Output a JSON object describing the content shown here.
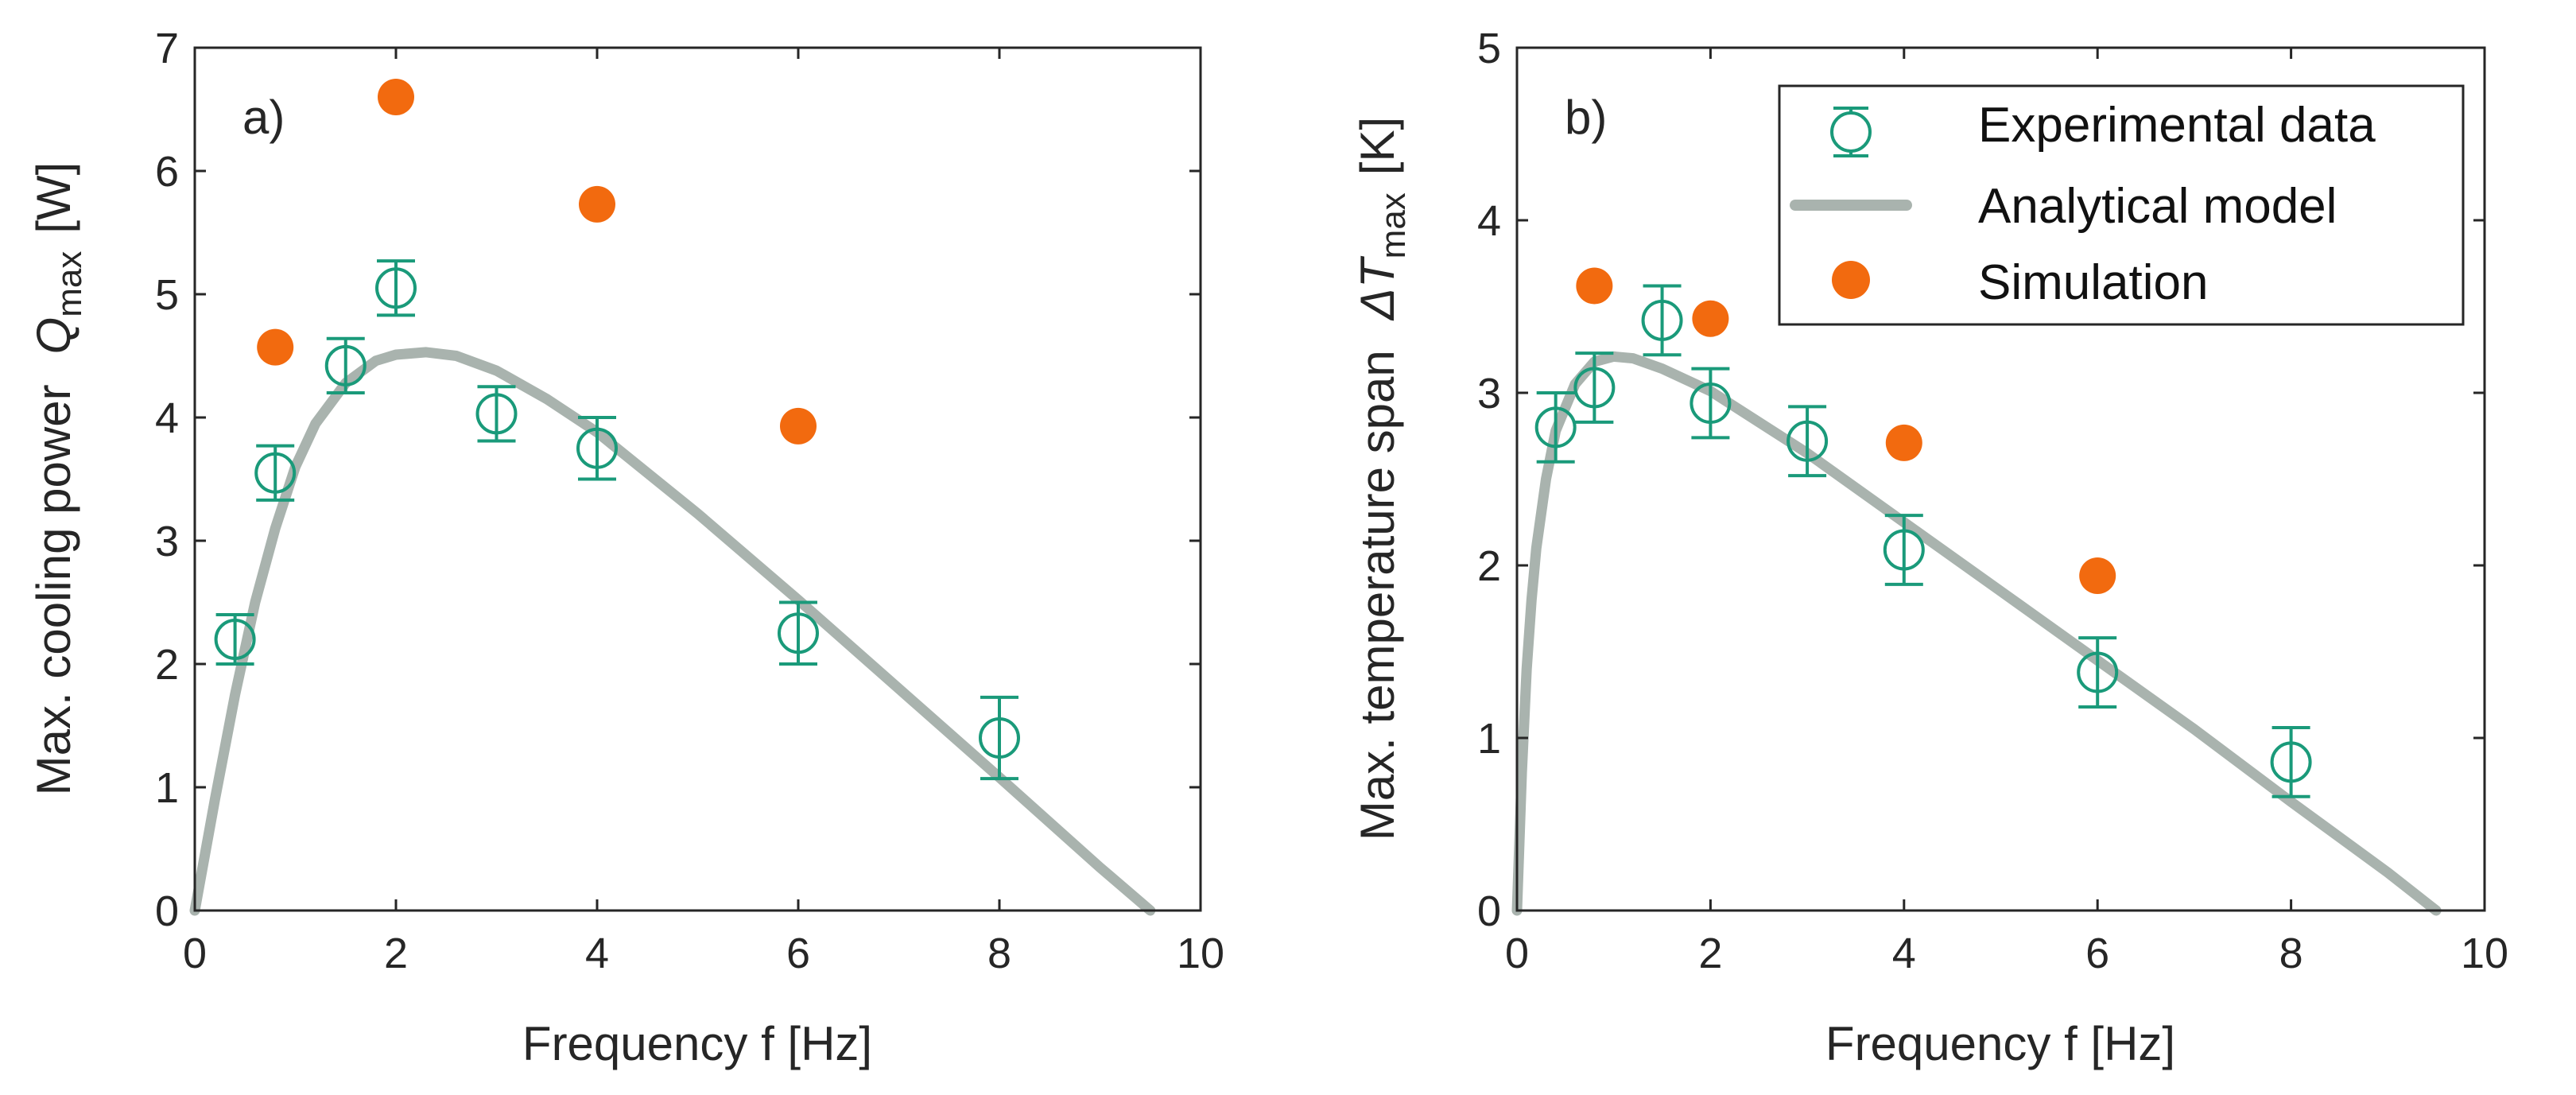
{
  "colors": {
    "experimental": "#1a9a7a",
    "model": "#a9b3ae",
    "simulation": "#f26a0f",
    "axes": "#262626"
  },
  "legend": {
    "experimental": "Experimental data",
    "model": "Analytical model",
    "simulation": "Simulation"
  },
  "chart_data": [
    {
      "type": "scatter",
      "panel_label": "a)",
      "xlabel": "Frequency f [Hz]",
      "ylabel_prefix": "Max. cooling power",
      "ylabel_symbol": "Q",
      "ylabel_subscript": "max",
      "ylabel_unit": "[W]",
      "xlim": [
        0,
        10
      ],
      "ylim": [
        0,
        7
      ],
      "xticks": [
        0,
        2,
        4,
        6,
        8,
        10
      ],
      "yticks": [
        0,
        1,
        2,
        3,
        4,
        5,
        6,
        7
      ],
      "grid": false,
      "series": [
        {
          "kind": "experimental",
          "x": [
            0.4,
            0.8,
            1.5,
            2.0,
            3.0,
            4.0,
            6.0,
            8.0
          ],
          "y": [
            2.2,
            3.55,
            4.42,
            5.05,
            4.03,
            3.75,
            2.25,
            1.4
          ],
          "err": [
            0.2,
            0.22,
            0.22,
            0.22,
            0.22,
            0.25,
            0.25,
            0.33
          ]
        },
        {
          "kind": "model",
          "x": [
            0.0,
            0.2,
            0.4,
            0.6,
            0.8,
            1.0,
            1.2,
            1.5,
            1.8,
            2.0,
            2.3,
            2.6,
            3.0,
            3.5,
            4.0,
            5.0,
            6.0,
            7.0,
            8.0,
            9.0,
            9.5
          ],
          "y": [
            0.0,
            0.9,
            1.75,
            2.5,
            3.1,
            3.6,
            3.95,
            4.28,
            4.46,
            4.51,
            4.53,
            4.5,
            4.38,
            4.15,
            3.88,
            3.22,
            2.52,
            1.8,
            1.08,
            0.35,
            0.0
          ]
        },
        {
          "kind": "simulation",
          "x": [
            0.8,
            2.0,
            4.0,
            6.0
          ],
          "y": [
            4.57,
            6.6,
            5.73,
            3.93
          ]
        }
      ]
    },
    {
      "type": "scatter",
      "panel_label": "b)",
      "xlabel": "Frequency f [Hz]",
      "ylabel_prefix": "Max. temperature span",
      "ylabel_symbol": "ΔT",
      "ylabel_subscript": "max",
      "ylabel_unit": "[K]",
      "xlim": [
        0,
        10
      ],
      "ylim": [
        0,
        5
      ],
      "xticks": [
        0,
        2,
        4,
        6,
        8,
        10
      ],
      "yticks": [
        0,
        1,
        2,
        3,
        4,
        5
      ],
      "grid": false,
      "legend_position": "top-right",
      "series": [
        {
          "kind": "experimental",
          "x": [
            0.4,
            0.8,
            1.5,
            2.0,
            3.0,
            4.0,
            6.0,
            8.0
          ],
          "y": [
            2.8,
            3.03,
            3.42,
            2.94,
            2.72,
            2.09,
            1.38,
            0.86
          ],
          "err": [
            0.2,
            0.2,
            0.2,
            0.2,
            0.2,
            0.2,
            0.2,
            0.2
          ]
        },
        {
          "kind": "model",
          "x": [
            0.0,
            0.05,
            0.1,
            0.15,
            0.2,
            0.3,
            0.4,
            0.6,
            0.8,
            1.0,
            1.2,
            1.5,
            2.0,
            3.0,
            4.0,
            5.0,
            6.0,
            7.0,
            8.0,
            9.0,
            9.5
          ],
          "y": [
            0.0,
            0.8,
            1.4,
            1.8,
            2.1,
            2.5,
            2.78,
            3.05,
            3.18,
            3.21,
            3.2,
            3.14,
            3.01,
            2.65,
            2.25,
            1.85,
            1.45,
            1.05,
            0.63,
            0.22,
            0.0
          ]
        },
        {
          "kind": "simulation",
          "x": [
            0.8,
            2.0,
            4.0,
            6.0
          ],
          "y": [
            3.62,
            3.43,
            2.71,
            1.94
          ]
        }
      ]
    }
  ]
}
